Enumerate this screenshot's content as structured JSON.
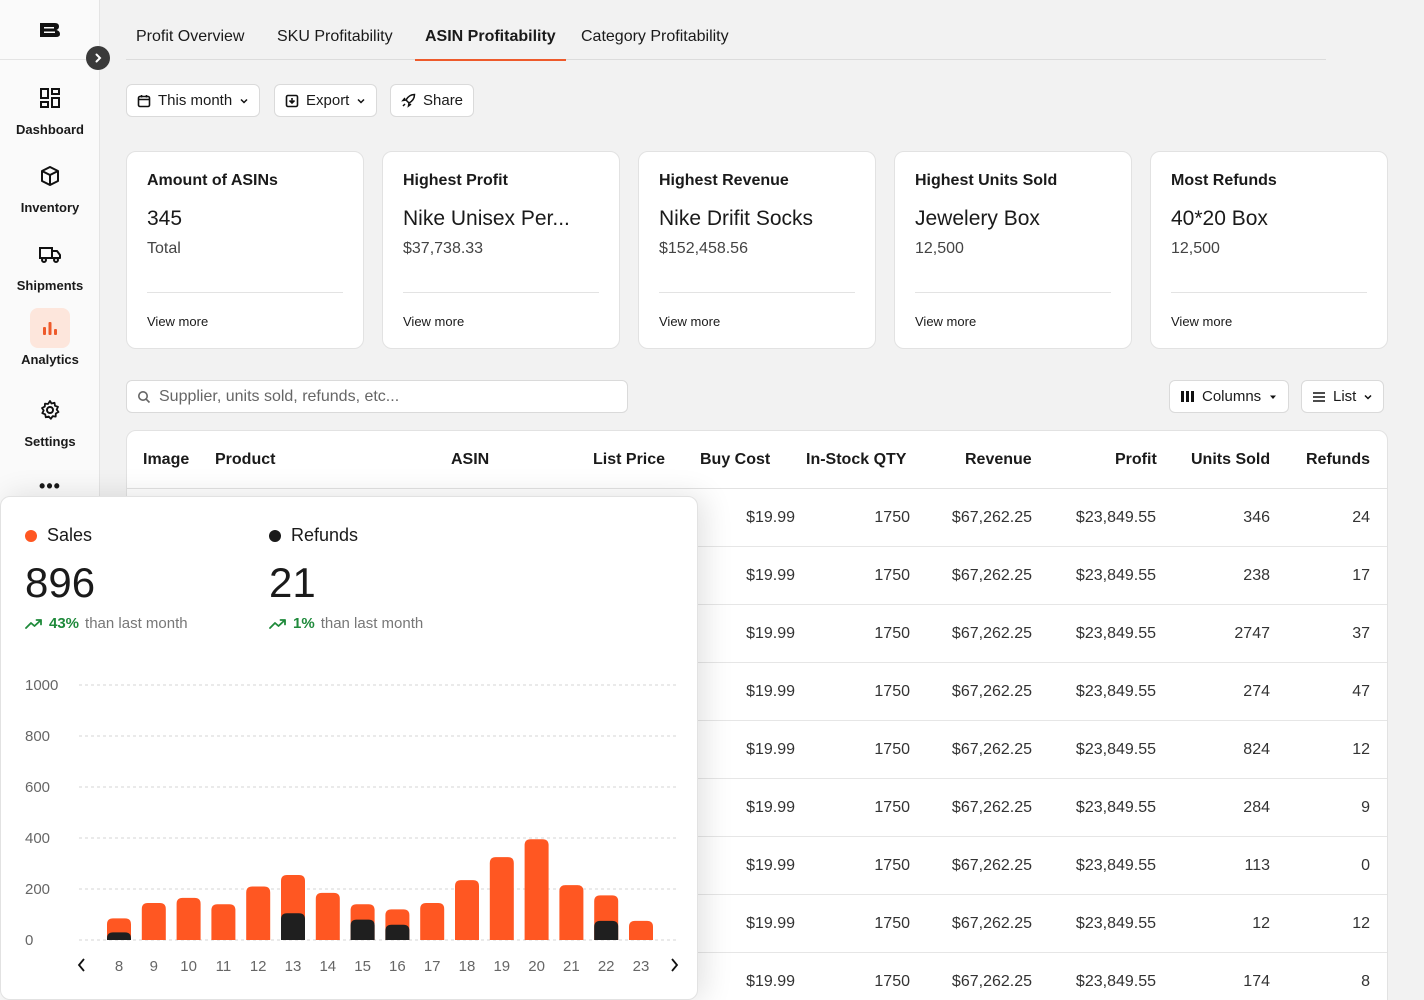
{
  "sidebar": {
    "items": [
      {
        "label": "Dashboard",
        "icon": "grid-icon"
      },
      {
        "label": "Inventory",
        "icon": "box-icon"
      },
      {
        "label": "Shipments",
        "icon": "truck-icon"
      },
      {
        "label": "Analytics",
        "icon": "bar-chart-icon",
        "active": true
      },
      {
        "label": "Settings",
        "icon": "gear-icon"
      }
    ],
    "more": "•••"
  },
  "tabs": [
    {
      "label": "Profit Overview"
    },
    {
      "label": "SKU Profitability"
    },
    {
      "label": "ASIN Profitability",
      "active": true
    },
    {
      "label": "Category Profitability"
    }
  ],
  "toolbar": {
    "date_label": "This month",
    "export_label": "Export",
    "share_label": "Share"
  },
  "cards": [
    {
      "title": "Amount of ASINs",
      "value": "345",
      "sub": "Total",
      "link": "View more"
    },
    {
      "title": "Highest Profit",
      "value": "Nike Unisex Per...",
      "sub": "$37,738.33",
      "link": "View more"
    },
    {
      "title": "Highest Revenue",
      "value": "Nike Drifit Socks",
      "sub": "$152,458.56",
      "link": "View more"
    },
    {
      "title": "Highest Units Sold",
      "value": "Jewelery Box",
      "sub": "12,500",
      "link": "View more"
    },
    {
      "title": "Most Refunds",
      "value": "40*20 Box",
      "sub": "12,500",
      "link": "View more"
    }
  ],
  "search": {
    "placeholder": "Supplier, units sold, refunds, etc..."
  },
  "controls": {
    "columns_label": "Columns",
    "list_label": "List"
  },
  "table": {
    "headers": [
      "Image",
      "Product",
      "ASIN",
      "List Price",
      "Buy Cost",
      "In-Stock QTY",
      "Revenue",
      "Profit",
      "Units Sold",
      "Refunds"
    ],
    "rows": [
      {
        "buy_cost": "$19.99",
        "qty": "1750",
        "revenue": "$67,262.25",
        "profit": "$23,849.55",
        "units": "346",
        "refunds": "24"
      },
      {
        "buy_cost": "$19.99",
        "qty": "1750",
        "revenue": "$67,262.25",
        "profit": "$23,849.55",
        "units": "238",
        "refunds": "17"
      },
      {
        "buy_cost": "$19.99",
        "qty": "1750",
        "revenue": "$67,262.25",
        "profit": "$23,849.55",
        "units": "2747",
        "refunds": "37"
      },
      {
        "buy_cost": "$19.99",
        "qty": "1750",
        "revenue": "$67,262.25",
        "profit": "$23,849.55",
        "units": "274",
        "refunds": "47"
      },
      {
        "buy_cost": "$19.99",
        "qty": "1750",
        "revenue": "$67,262.25",
        "profit": "$23,849.55",
        "units": "824",
        "refunds": "12"
      },
      {
        "buy_cost": "$19.99",
        "qty": "1750",
        "revenue": "$67,262.25",
        "profit": "$23,849.55",
        "units": "284",
        "refunds": "9"
      },
      {
        "buy_cost": "$19.99",
        "qty": "1750",
        "revenue": "$67,262.25",
        "profit": "$23,849.55",
        "units": "113",
        "refunds": "0"
      },
      {
        "buy_cost": "$19.99",
        "qty": "1750",
        "revenue": "$67,262.25",
        "profit": "$23,849.55",
        "units": "12",
        "refunds": "12"
      },
      {
        "buy_cost": "$19.99",
        "qty": "1750",
        "revenue": "$67,262.25",
        "profit": "$23,849.55",
        "units": "174",
        "refunds": "8"
      }
    ]
  },
  "summary": {
    "sales": {
      "label": "Sales",
      "value": "896",
      "pct": "43%",
      "txt": "than last month",
      "color": "#ff5722"
    },
    "refunds": {
      "label": "Refunds",
      "value": "21",
      "pct": "1%",
      "txt": "than last month",
      "color": "#1a1a1a"
    }
  },
  "chart_data": {
    "type": "bar",
    "categories": [
      "8",
      "9",
      "10",
      "11",
      "12",
      "13",
      "14",
      "15",
      "16",
      "17",
      "18",
      "19",
      "20",
      "21",
      "22",
      "23"
    ],
    "series": [
      {
        "name": "Sales",
        "color": "#ff5722",
        "values": [
          85,
          145,
          165,
          140,
          210,
          255,
          185,
          140,
          120,
          145,
          235,
          325,
          395,
          215,
          175,
          75
        ]
      },
      {
        "name": "Refunds",
        "color": "#1f1f1f",
        "values": [
          30,
          0,
          0,
          0,
          0,
          105,
          0,
          80,
          60,
          0,
          0,
          0,
          0,
          0,
          75,
          0
        ]
      }
    ],
    "yticks": [
      0,
      200,
      400,
      600,
      800,
      1000
    ],
    "ylim": [
      0,
      1000
    ],
    "grid": true
  }
}
